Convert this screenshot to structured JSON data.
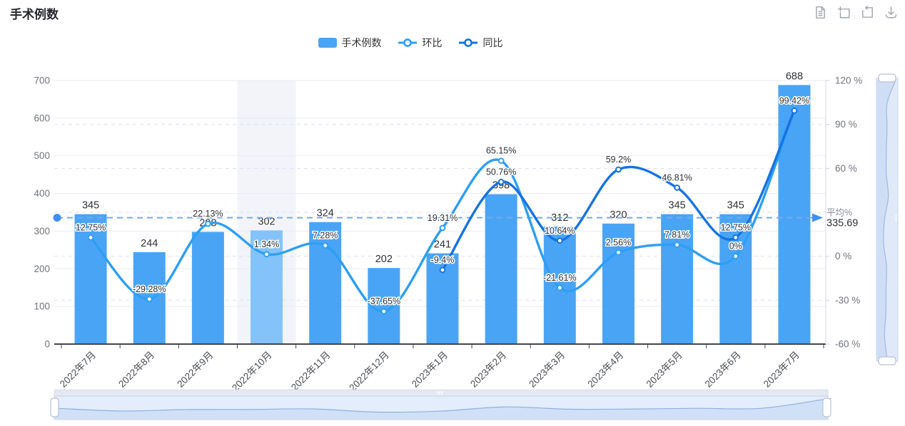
{
  "title": "手术例数",
  "toolbox": {
    "icons": [
      "data-view",
      "data-zoom",
      "restore",
      "save-image"
    ]
  },
  "legend": {
    "items": [
      {
        "label": "手术例数",
        "type": "bar"
      },
      {
        "label": "环比",
        "type": "line"
      },
      {
        "label": "同比",
        "type": "line"
      }
    ]
  },
  "colors": {
    "bar": "#4aa4f5",
    "bar_highlight": "#83c3f9",
    "line_huanbi": "#2e9ff3",
    "line_tongbi": "#1673e0",
    "avg_dash": "#74a9f0",
    "avg_marker": "#3e90f0",
    "hover_band": "#f2f4fa",
    "grid_solid": "#e8ebf3",
    "grid_dashed": "#d6dff3",
    "axis_line": "#42454c",
    "axis_label": "#71757e",
    "x_label": "#4b4e55",
    "value_label": "#2f3237",
    "slider_body": "#e3edfb",
    "slider_shadow_line": "#8fb0e0",
    "slider_shadow_fill": "#cbdcf5",
    "slider_border": "#c9d2e4",
    "handle_fill": "#ffffff",
    "handle_border": "#b9c1d1"
  },
  "chart_data": {
    "type": "bar+line",
    "categories": [
      "2022年7月",
      "2022年8月",
      "2022年9月",
      "2022年10月",
      "2022年11月",
      "2022年12月",
      "2023年1月",
      "2023年2月",
      "2023年3月",
      "2023年4月",
      "2023年5月",
      "2023年6月",
      "2023年7月"
    ],
    "series": [
      {
        "name": "手术例数",
        "type": "bar",
        "axis": "left",
        "values": [
          345,
          244,
          298,
          302,
          324,
          202,
          241,
          398,
          312,
          320,
          345,
          345,
          688
        ],
        "highlight_index": 3
      },
      {
        "name": "环比",
        "type": "line",
        "axis": "right",
        "values": [
          12.75,
          -29.28,
          22.13,
          1.34,
          7.28,
          -37.65,
          19.31,
          65.15,
          -21.61,
          2.56,
          7.81,
          0,
          99.42
        ],
        "labels": [
          "12.75%",
          "-29.28%",
          "22.13%",
          "1.34%",
          "7.28%",
          "-37.65%",
          "19.31%",
          "65.15%",
          "-21.61%",
          "2.56%",
          "7.81%",
          "0%",
          "99.42%"
        ]
      },
      {
        "name": "同比",
        "type": "line",
        "axis": "right",
        "values": [
          null,
          null,
          null,
          null,
          null,
          null,
          -9.4,
          50.76,
          10.64,
          59.2,
          46.81,
          12.75,
          99.42
        ],
        "labels": [
          null,
          null,
          null,
          null,
          null,
          null,
          "-9.4%",
          "50.76%",
          "10.64%",
          "59.2%",
          "46.81%",
          "12.75%",
          null
        ]
      }
    ],
    "left_axis": {
      "min": 0,
      "max": 700,
      "ticks": [
        0,
        100,
        200,
        300,
        400,
        500,
        600,
        700
      ],
      "tick_labels": [
        "0",
        "100",
        "200",
        "300",
        "400",
        "500",
        "600",
        "700"
      ]
    },
    "right_axis": {
      "min": -60,
      "max": 120,
      "ticks": [
        120,
        90,
        60,
        0,
        -30,
        -60
      ],
      "tick_labels": [
        "120 %",
        "90 %",
        "60 %",
        "0 %",
        "-30 %",
        "-60 %"
      ],
      "grid_dashed": [
        90,
        60,
        30,
        0,
        -30
      ]
    },
    "average_line": {
      "title": "平均%",
      "value": "335.69",
      "numeric": 335.69
    },
    "legend_position": "top-center",
    "grid": "on"
  }
}
